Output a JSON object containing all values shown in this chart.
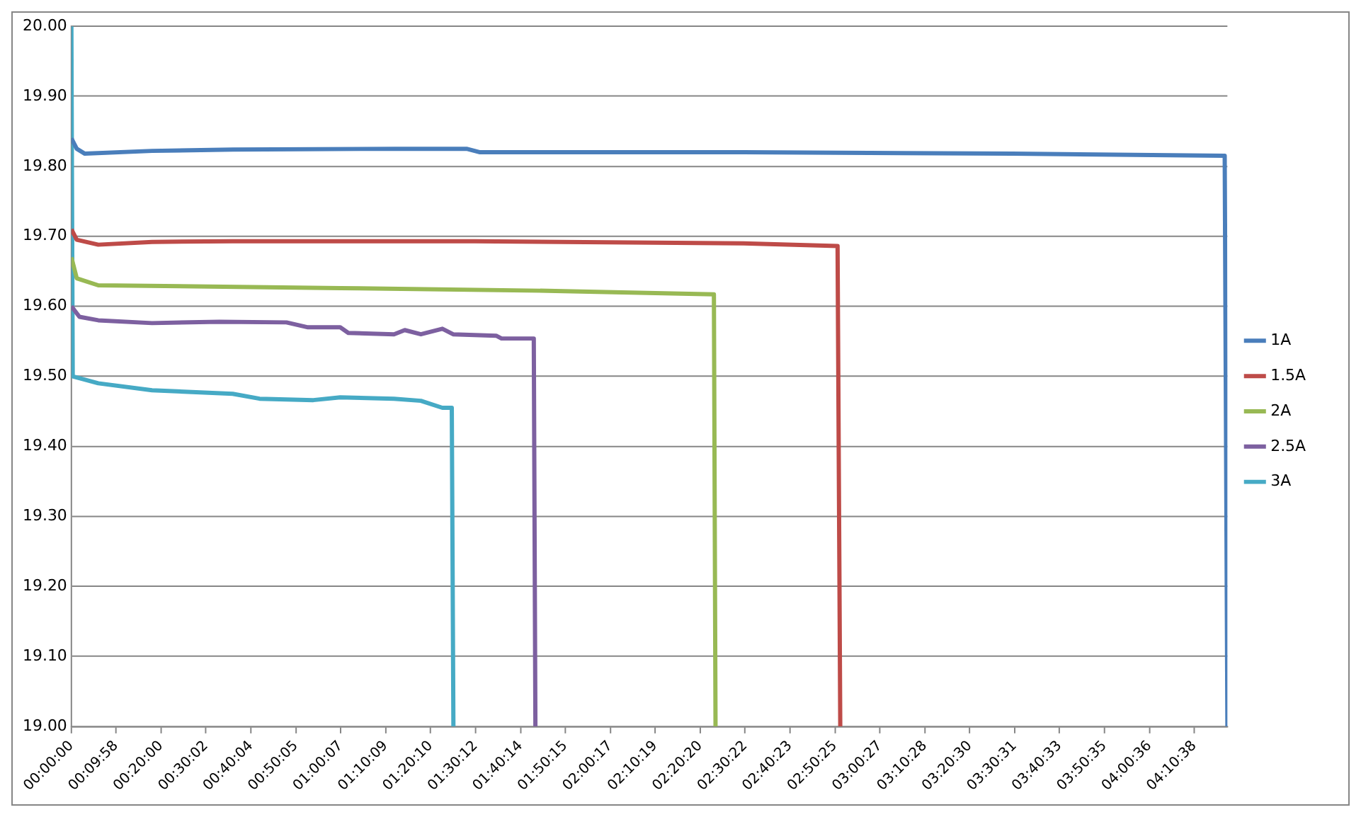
{
  "chart_data": {
    "type": "line",
    "xlim": [
      0,
      4.3
    ],
    "xticks": [
      {
        "value": 0,
        "label": "00:00:00"
      },
      {
        "value": 0.1661,
        "label": "00:09:58"
      },
      {
        "value": 0.3333,
        "label": "00:20:00"
      },
      {
        "value": 0.5006,
        "label": "00:30:02"
      },
      {
        "value": 0.6678,
        "label": "00:40:04"
      },
      {
        "value": 0.8347,
        "label": "00:50:05"
      },
      {
        "value": 1.0019,
        "label": "01:00:07"
      },
      {
        "value": 1.1692,
        "label": "01:10:09"
      },
      {
        "value": 1.3361,
        "label": "01:20:10"
      },
      {
        "value": 1.5033,
        "label": "01:30:12"
      },
      {
        "value": 1.6706,
        "label": "01:40:14"
      },
      {
        "value": 1.8375,
        "label": "01:50:15"
      },
      {
        "value": 2.0047,
        "label": "02:00:17"
      },
      {
        "value": 2.1719,
        "label": "02:10:19"
      },
      {
        "value": 2.3389,
        "label": "02:20:20"
      },
      {
        "value": 2.5061,
        "label": "02:30:22"
      },
      {
        "value": 2.6731,
        "label": "02:40:23"
      },
      {
        "value": 2.8403,
        "label": "02:50:25"
      },
      {
        "value": 3.0075,
        "label": "03:00:27"
      },
      {
        "value": 3.1744,
        "label": "03:10:28"
      },
      {
        "value": 3.3417,
        "label": "03:20:30"
      },
      {
        "value": 3.5086,
        "label": "03:30:31"
      },
      {
        "value": 3.6758,
        "label": "03:40:33"
      },
      {
        "value": 3.8431,
        "label": "03:50:35"
      },
      {
        "value": 4.01,
        "label": "04:00:36"
      },
      {
        "value": 4.1772,
        "label": "04:10:38"
      }
    ],
    "ylim": [
      19.0,
      20.0
    ],
    "yticks": [
      {
        "value": 19.0,
        "label": "19.00"
      },
      {
        "value": 19.1,
        "label": "19.10"
      },
      {
        "value": 19.2,
        "label": "19.20"
      },
      {
        "value": 19.3,
        "label": "19.30"
      },
      {
        "value": 19.4,
        "label": "19.40"
      },
      {
        "value": 19.5,
        "label": "19.50"
      },
      {
        "value": 19.6,
        "label": "19.60"
      },
      {
        "value": 19.7,
        "label": "19.70"
      },
      {
        "value": 19.8,
        "label": "19.80"
      },
      {
        "value": 19.9,
        "label": "19.90"
      },
      {
        "value": 20.0,
        "label": "20.00"
      }
    ],
    "grid": "y",
    "legend": "right",
    "marker": "none",
    "line_style": "solid",
    "series": [
      {
        "name": "1A",
        "color": "#4a7ebb",
        "x": [
          0,
          0.02,
          0.05,
          0.3,
          0.6,
          1.2,
          1.47,
          1.52,
          2.5,
          3.5,
          4.29,
          4.3
        ],
        "values": [
          19.84,
          19.825,
          19.818,
          19.822,
          19.824,
          19.825,
          19.825,
          19.82,
          19.82,
          19.818,
          19.815,
          19.0
        ]
      },
      {
        "name": "1.5A",
        "color": "#be4b48",
        "x": [
          0,
          0.02,
          0.1,
          0.3,
          0.6,
          1.5,
          2.5,
          2.85,
          2.86
        ],
        "values": [
          19.71,
          19.695,
          19.688,
          19.692,
          19.693,
          19.693,
          19.69,
          19.686,
          19.0
        ]
      },
      {
        "name": "2A",
        "color": "#98b954",
        "x": [
          0,
          0.02,
          0.1,
          1.0,
          1.8,
          2.39,
          2.396
        ],
        "values": [
          19.67,
          19.64,
          19.63,
          19.626,
          19.622,
          19.617,
          19.0
        ]
      },
      {
        "name": "2.5A",
        "color": "#7d60a0",
        "x": [
          0,
          0.03,
          0.1,
          0.3,
          0.55,
          0.8,
          0.88,
          1.0,
          1.03,
          1.2,
          1.24,
          1.3,
          1.38,
          1.42,
          1.58,
          1.6,
          1.72,
          1.726
        ],
        "values": [
          19.6,
          19.585,
          19.58,
          19.576,
          19.578,
          19.577,
          19.57,
          19.57,
          19.562,
          19.56,
          19.566,
          19.56,
          19.568,
          19.56,
          19.558,
          19.554,
          19.554,
          19.0
        ]
      },
      {
        "name": "3A",
        "color": "#46aac5",
        "x": [
          0,
          0.005,
          0.1,
          0.3,
          0.6,
          0.7,
          0.9,
          1.0,
          1.2,
          1.3,
          1.38,
          1.415,
          1.421
        ],
        "values": [
          20.0,
          19.5,
          19.49,
          19.48,
          19.475,
          19.468,
          19.466,
          19.47,
          19.468,
          19.465,
          19.455,
          19.455,
          19.0
        ]
      }
    ]
  }
}
